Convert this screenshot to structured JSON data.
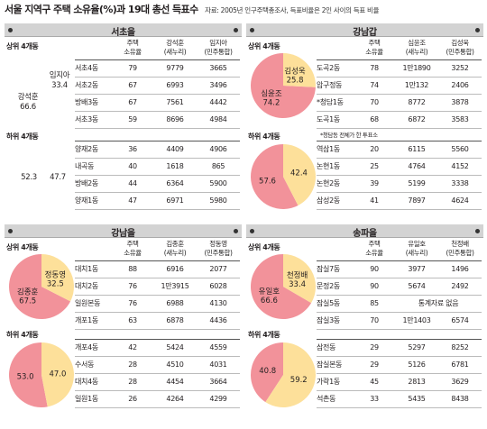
{
  "header": {
    "title": "서울 지역구 주택 소유율(%)과 19대 총선 득표수",
    "subtitle": "자료: 2005년 인구주택총조사, 득표비율은 2인 사이의 득표 비율"
  },
  "colors": {
    "pink": "#f2929a",
    "yellow": "#fde09a",
    "header_gray": "#d3d3d3"
  },
  "panels": [
    {
      "name": "서초을",
      "top_label": "상위 4개동",
      "bottom_label": "하위 4개동",
      "headers": {
        "own1": "주택",
        "own2": "소유율",
        "c1": "강석훈",
        "c1sub": "(새누리)",
        "c2": "임지아",
        "c2sub": "(민주통합)"
      },
      "top_chart": {
        "a_name": "강석훈",
        "a_val": "66.6",
        "b_name": "임지아",
        "b_val": "33.4"
      },
      "bottom_chart": {
        "a_val": "52.3",
        "b_val": "47.7"
      },
      "top_rows": [
        {
          "district": "서초4동",
          "own": "79",
          "v1": "9779",
          "v2": "3665"
        },
        {
          "district": "서초2동",
          "own": "67",
          "v1": "6993",
          "v2": "3496"
        },
        {
          "district": "방배3동",
          "own": "67",
          "v1": "7561",
          "v2": "4442"
        },
        {
          "district": "서초3동",
          "own": "59",
          "v1": "8696",
          "v2": "4984"
        }
      ],
      "bottom_rows": [
        {
          "district": "양재2동",
          "own": "36",
          "v1": "4409",
          "v2": "4906"
        },
        {
          "district": "내곡동",
          "own": "40",
          "v1": "1618",
          "v2": "865"
        },
        {
          "district": "방배2동",
          "own": "44",
          "v1": "6364",
          "v2": "5900"
        },
        {
          "district": "양재1동",
          "own": "47",
          "v1": "6971",
          "v2": "5980"
        }
      ]
    },
    {
      "name": "강남갑",
      "top_label": "상위 4개동",
      "bottom_label": "하위 4개동",
      "footnote": "*청담동 전체가 한 투표소",
      "headers": {
        "own1": "주택",
        "own2": "소유율",
        "c1": "심윤조",
        "c1sub": "(새누리)",
        "c2": "김성욱",
        "c2sub": "(민주통합)"
      },
      "top_chart": {
        "a_name": "심윤조",
        "a_val": "74.2",
        "b_name": "김성욱",
        "b_val": "25.8"
      },
      "bottom_chart": {
        "a_val": "57.6",
        "b_val": "42.4"
      },
      "top_rows": [
        {
          "district": "도곡2동",
          "own": "78",
          "v1": "1만1890",
          "v2": "3252"
        },
        {
          "district": "압구정동",
          "own": "74",
          "v1": "1만132",
          "v2": "2406"
        },
        {
          "district": "*청담1동",
          "own": "70",
          "v1": "8772",
          "v2": "3878"
        },
        {
          "district": "도곡1동",
          "own": "68",
          "v1": "6872",
          "v2": "3583"
        }
      ],
      "bottom_rows": [
        {
          "district": "역삼1동",
          "own": "20",
          "v1": "6115",
          "v2": "5560"
        },
        {
          "district": "논현1동",
          "own": "25",
          "v1": "4764",
          "v2": "4152"
        },
        {
          "district": "논현2동",
          "own": "39",
          "v1": "5199",
          "v2": "3338"
        },
        {
          "district": "삼성2동",
          "own": "41",
          "v1": "7897",
          "v2": "4624"
        }
      ]
    },
    {
      "name": "강남을",
      "top_label": "상위 4개동",
      "bottom_label": "하위 4개동",
      "headers": {
        "own1": "주택",
        "own2": "소유율",
        "c1": "김종훈",
        "c1sub": "(새누리)",
        "c2": "정동영",
        "c2sub": "(민주통합)"
      },
      "top_chart": {
        "a_name": "김종훈",
        "a_val": "67.5",
        "b_name": "정동영",
        "b_val": "32.5"
      },
      "bottom_chart": {
        "a_val": "53.0",
        "b_val": "47.0"
      },
      "top_rows": [
        {
          "district": "대치1동",
          "own": "88",
          "v1": "6916",
          "v2": "2077"
        },
        {
          "district": "대치2동",
          "own": "76",
          "v1": "1만3915",
          "v2": "6028"
        },
        {
          "district": "일원본동",
          "own": "76",
          "v1": "6988",
          "v2": "4130"
        },
        {
          "district": "개포1동",
          "own": "63",
          "v1": "6878",
          "v2": "4436"
        }
      ],
      "bottom_rows": [
        {
          "district": "개포4동",
          "own": "42",
          "v1": "5424",
          "v2": "4559"
        },
        {
          "district": "수서동",
          "own": "28",
          "v1": "4510",
          "v2": "4031"
        },
        {
          "district": "대치4동",
          "own": "28",
          "v1": "4454",
          "v2": "3664"
        },
        {
          "district": "일원1동",
          "own": "26",
          "v1": "4264",
          "v2": "4299"
        }
      ]
    },
    {
      "name": "송파을",
      "top_label": "상위 4개동",
      "bottom_label": "하위 4개동",
      "headers": {
        "own1": "주택",
        "own2": "소유율",
        "c1": "유일호",
        "c1sub": "(새누리)",
        "c2": "천정배",
        "c2sub": "(민주통합)"
      },
      "top_chart": {
        "a_name": "유일호",
        "a_val": "66.6",
        "b_name": "천정배",
        "b_val": "33.4"
      },
      "bottom_chart": {
        "a_val": "40.8",
        "b_val": "59.2"
      },
      "top_rows": [
        {
          "district": "잠실7동",
          "own": "90",
          "v1": "3977",
          "v2": "1496"
        },
        {
          "district": "문정2동",
          "own": "90",
          "v1": "5674",
          "v2": "2492"
        },
        {
          "district": "잠실5동",
          "own": "85",
          "note": "통계자료 없음"
        },
        {
          "district": "잠실3동",
          "own": "70",
          "v1": "1만1403",
          "v2": "6574"
        }
      ],
      "bottom_rows": [
        {
          "district": "삼전동",
          "own": "29",
          "v1": "5297",
          "v2": "8252"
        },
        {
          "district": "잠실본동",
          "own": "29",
          "v1": "5126",
          "v2": "6781"
        },
        {
          "district": "가락1동",
          "own": "45",
          "v1": "2813",
          "v2": "3629"
        },
        {
          "district": "석촌동",
          "own": "33",
          "v1": "5435",
          "v2": "8438"
        }
      ]
    }
  ]
}
